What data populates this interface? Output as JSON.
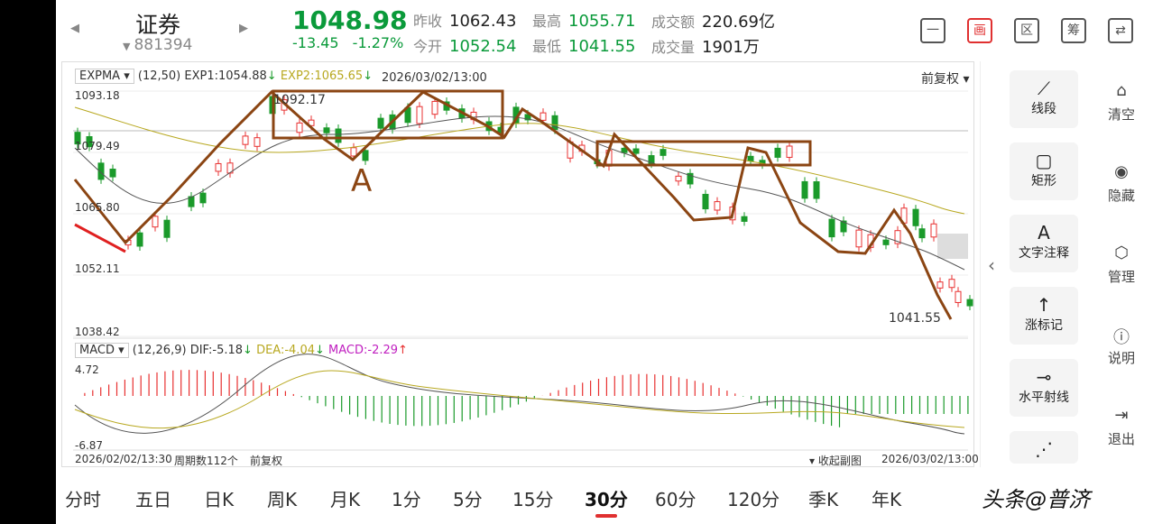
{
  "header": {
    "name": "证券",
    "code": "881394",
    "price": "1048.98",
    "change": "-13.45",
    "change_pct": "-1.27%",
    "stats": [
      {
        "label": "昨收",
        "value": "1062.43",
        "green": false
      },
      {
        "label": "今开",
        "value": "1052.54",
        "green": true
      },
      {
        "label": "最高",
        "value": "1055.71",
        "green": true
      },
      {
        "label": "最低",
        "value": "1041.55",
        "green": true
      },
      {
        "label": "成交额",
        "value": "220.69亿",
        "green": false
      },
      {
        "label": "成交量",
        "value": "1901万",
        "green": false
      }
    ],
    "tools": [
      "一",
      "画",
      "区",
      "筹",
      "⇄"
    ]
  },
  "chart": {
    "indicator": "EXPMA",
    "params": "(12,50)",
    "exp1": "EXP1:1054.88",
    "exp2": "EXP2:1065.65",
    "datetime": "2026/03/02/13:00",
    "adjust": "前复权",
    "high_label": "1092.17",
    "low_label": "1041.55",
    "annotation": "A",
    "yticks": [
      "1093.18",
      "1079.49",
      "1065.80",
      "1052.11",
      "1038.42"
    ],
    "macd_name": "MACD",
    "macd_params": "(12,26,9)",
    "dif": "DIF:-5.18",
    "dea": "DEA:-4.04",
    "macd": "MACD:-2.29",
    "macd_top": "4.72",
    "macd_bottom": "-6.87",
    "start_date": "2026/02/02/13:30",
    "period_count": "周期数112个",
    "adjust2": "前复权",
    "collapse_sub": "收起副图",
    "end_date": "2026/03/02/13:00",
    "colors": {
      "up": "#e83030",
      "down": "#1a9a2a",
      "exp1": "#555555",
      "exp2": "#b8a820",
      "draw": "#8b4513"
    }
  },
  "panel": {
    "draw_tools": [
      {
        "icon": "line-segment-icon",
        "label": "线段"
      },
      {
        "icon": "rectangle-icon",
        "label": "矩形"
      },
      {
        "icon": "text-icon",
        "label": "文字注释"
      },
      {
        "icon": "arrow-up-icon",
        "label": "涨标记"
      },
      {
        "icon": "horizontal-ray-icon",
        "label": "水平射线"
      }
    ],
    "manage": [
      "清空",
      "隐藏",
      "管理",
      "说明",
      "退出"
    ]
  },
  "tabs": [
    "分时",
    "五日",
    "日K",
    "周K",
    "月K",
    "1分",
    "5分",
    "15分",
    "30分",
    "60分",
    "120分",
    "季K",
    "年K"
  ],
  "active_tab": "30分",
  "watermark": "头条@普济"
}
